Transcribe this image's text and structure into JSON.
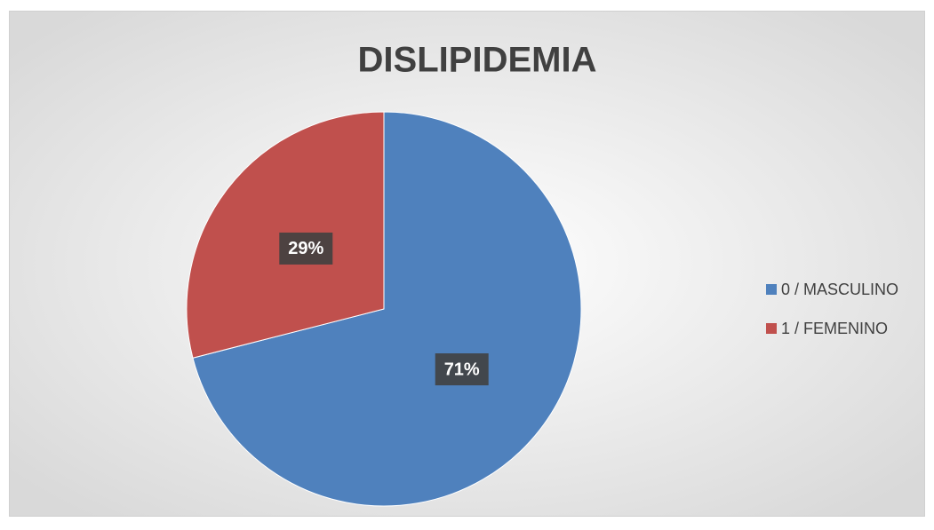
{
  "chart_data": {
    "type": "pie",
    "title": "DISLIPIDEMIA",
    "categories": [
      "0 / MASCULINO",
      "1 / FEMENINO"
    ],
    "values": [
      71,
      29
    ],
    "value_labels": [
      "71%",
      "29%"
    ],
    "colors": [
      "#4f81bd",
      "#c0504d"
    ],
    "legend": "right"
  }
}
